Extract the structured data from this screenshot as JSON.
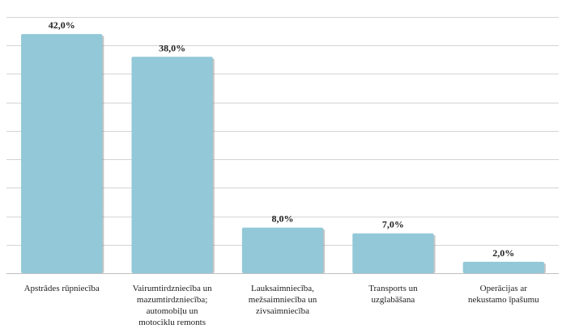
{
  "chart_data": {
    "type": "bar",
    "categories": [
      "Apstrādes rūpniecība",
      "Vairumtirdzniecība un mazumtirdzniecība; automobiļu un motociklu remonts",
      "Lauksaimniecība, mežsaimniecība un zivsaimniecība",
      "Transports un uzglabāšana",
      "Operācijas ar nekustamo īpašumu"
    ],
    "category_lines": [
      [
        "Apstrādes rūpniecība"
      ],
      [
        "Vairumtirdzniecība un",
        "mazumtirdzniecība;",
        "automobiļu un",
        "motociklu remonts"
      ],
      [
        "Lauksaimniecība,",
        "mežsaimniecība un",
        "zivsaimniecība"
      ],
      [
        "Transports un",
        "uzglabāšana"
      ],
      [
        "Operācijas ar",
        "nekustamo īpašumu"
      ]
    ],
    "values": [
      42.0,
      38.0,
      8.0,
      7.0,
      2.0
    ],
    "data_labels": [
      "42,0%",
      "38,0%",
      "8,0%",
      "7,0%",
      "2,0%"
    ],
    "ylim": [
      0,
      45
    ],
    "yticks": [
      0,
      5,
      10,
      15,
      20,
      25,
      30,
      35,
      40,
      45
    ],
    "grid": true,
    "bar_color": "#92c8d8",
    "title": "",
    "xlabel": "",
    "ylabel": ""
  }
}
